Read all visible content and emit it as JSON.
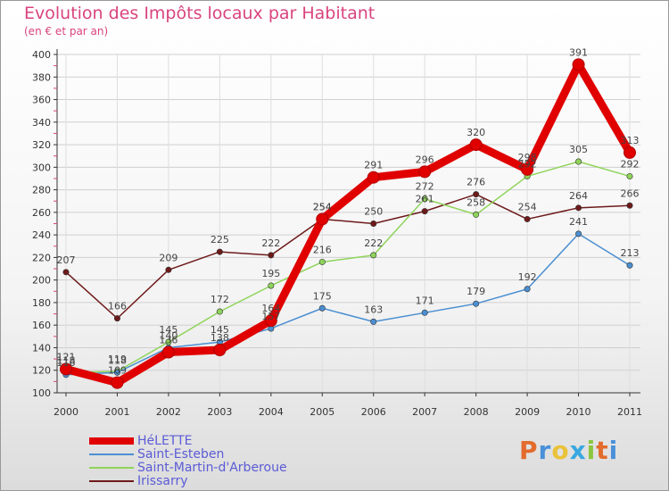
{
  "chart_data": {
    "type": "line",
    "title": "Evolution des Impôts locaux par Habitant",
    "subtitle": "(en € et par an)",
    "x": [
      "2000",
      "2001",
      "2002",
      "2003",
      "2004",
      "2005",
      "2006",
      "2007",
      "2008",
      "2009",
      "2010",
      "2011"
    ],
    "ylim": [
      100,
      400
    ],
    "yticks": [
      100,
      120,
      140,
      160,
      180,
      200,
      220,
      240,
      260,
      280,
      300,
      320,
      340,
      360,
      380,
      400
    ],
    "grid": true,
    "series": [
      {
        "name": "Irissarry",
        "color": "#6e1a1a",
        "values": [
          207,
          166,
          209,
          225,
          222,
          254,
          250,
          261,
          276,
          254,
          264,
          266
        ],
        "labels": [
          "207",
          "166",
          "209",
          "225",
          "222",
          "254",
          "250",
          "261",
          "276",
          "254",
          "264",
          "266"
        ]
      },
      {
        "name": "Saint-Martin-d'Arberoue",
        "color": "#8fd45a",
        "values": [
          118,
          119,
          145,
          172,
          195,
          216,
          222,
          272,
          258,
          292,
          305,
          292
        ],
        "labels": [
          "118",
          "119",
          "145",
          "172",
          "195",
          "216",
          "222",
          "272",
          "258",
          "292",
          "305",
          "292"
        ]
      },
      {
        "name": "Saint-Esteben",
        "color": "#4b8fd1",
        "values": [
          116,
          118,
          140,
          145,
          157,
          175,
          163,
          171,
          179,
          192,
          241,
          213
        ],
        "labels": [
          "116",
          "118",
          "140",
          "145",
          "157",
          "175",
          "163",
          "171",
          "179",
          "192",
          "241",
          "213"
        ]
      },
      {
        "name": "HéLETTE",
        "color": "#e00000",
        "values": [
          121,
          109,
          136,
          138,
          164,
          254,
          291,
          296,
          320,
          298,
          391,
          313
        ],
        "labels": [
          "121",
          "109",
          "136",
          "138",
          "164",
          "254",
          "291",
          "296",
          "320",
          "298",
          "391",
          "313"
        ]
      }
    ]
  },
  "legend": {
    "items": [
      {
        "name": "HéLETTE",
        "color": "#e00000"
      },
      {
        "name": "Saint-Esteben",
        "color": "#4b8fd1"
      },
      {
        "name": "Saint-Martin-d'Arberoue",
        "color": "#8fd45a"
      },
      {
        "name": "Irissarry",
        "color": "#6e1a1a"
      }
    ]
  },
  "logo": {
    "p": "P",
    "r": "r",
    "o": "o",
    "x": "x",
    "i1": "i",
    "t": "t",
    "i2": "i"
  }
}
